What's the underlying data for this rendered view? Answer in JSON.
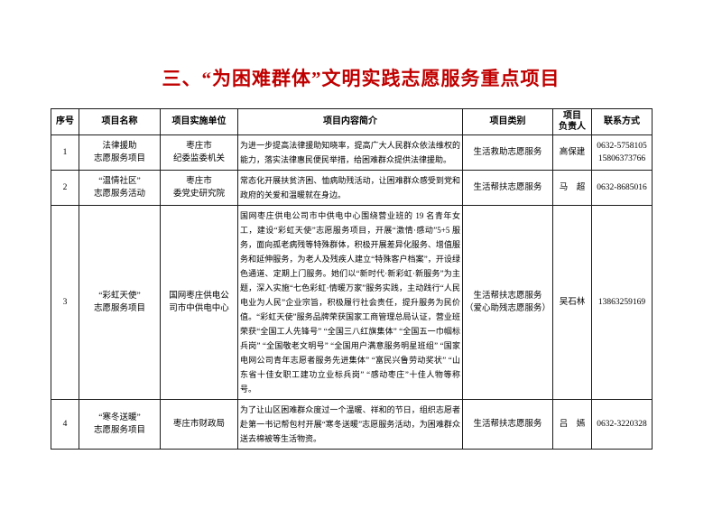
{
  "document": {
    "title": "三、“为困难群体”文明实践志愿服务重点项目",
    "title_color": "#c00000",
    "text_color": "#000000",
    "background_color": "#ffffff"
  },
  "table": {
    "headers": {
      "serial": "序号",
      "name": "项目名称",
      "unit": "项目实施单位",
      "description": "项目内容简介",
      "category": "项目类别",
      "leader": [
        "项目",
        "负责人"
      ],
      "contact": "联系方式"
    },
    "rows": [
      {
        "serial": "1",
        "name": [
          "法律援助",
          "志愿服务项目"
        ],
        "unit": [
          "枣庄市",
          "纪委监委机关"
        ],
        "description": "为进一步提高法律援助知晓率，提高广大人民群众依法维权的能力，落实法律惠民便民举措，给困难群众提供法律援助。",
        "category": "生活救助志愿服务",
        "leader": "高保建",
        "contact": [
          "0632-5758105",
          "15806373766"
        ]
      },
      {
        "serial": "2",
        "name": [
          "“温情社区”",
          "志愿服务活动"
        ],
        "unit": [
          "枣庄市",
          "委党史研究院"
        ],
        "description": "常态化开展扶贫济困、恤病助残活动，让困难群众感受到党和政府的关爱和温暖就在身边。",
        "category": "生活帮扶志愿服务",
        "leader": "马　超",
        "contact": "0632-8685016"
      },
      {
        "serial": "3",
        "name": [
          "“彩虹天使”",
          "志愿服务项目"
        ],
        "unit": [
          "国网枣庄供电公",
          "司市中供电中心"
        ],
        "description": "国网枣庄供电公司市中供电中心围绕营业班的 19 名青年女工，建设“彩虹天使”志愿服务项目，开展“激情·感动”5+5 服务，面向孤老病残等特殊群体，积极开展差异化服务、增值服务和延伸服务，为老人及残疾人建立“特殊客户档案”，开设绿色通道、定期上门服务。她们以“新时代·新彩虹·新服务”为主题，深入实施“七色彩虹·情暖万家”服务实践，主动践行“人民电业为人民”企业宗旨，积极履行社会责任，提升服务为民价值。“彩虹天使”服务品牌荣获国家工商管理总局认证，营业班荣获“全国工人先锋号” “全国三八红旗集体” “全国五一巾帼标兵岗” “全国敬老文明号” “全国用户满意服务明星班组” “国家电网公司青年志愿者服务先进集体” “富民兴鲁劳动奖状” “山东省十佳女职工建功立业标兵岗” “感动枣庄”十佳人物等称号。",
        "category": [
          "生活帮扶志愿服务",
          "（爱心助残志愿服务）"
        ],
        "leader": "吴石林",
        "contact": "13863259169"
      },
      {
        "serial": "4",
        "name": [
          "“寒冬送暖”",
          "志愿服务项目"
        ],
        "unit": "枣庄市财政局",
        "description": "为了让山区困难群众度过一个温暖、祥和的节日，组织志愿者赴第一书记帮包村开展“寒冬送暖”志愿服务活动，为困难群众送去棉被等生活物资。",
        "category": "生活帮扶志愿服务",
        "leader": "吕　嫣",
        "contact": "0632-3220328"
      }
    ]
  }
}
